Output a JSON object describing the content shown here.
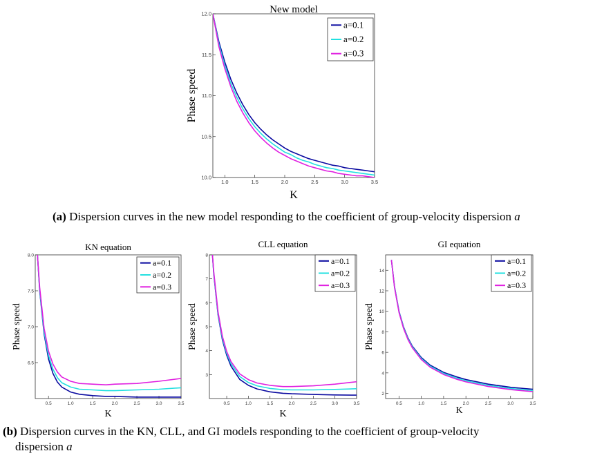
{
  "figure": {
    "caption_a": {
      "tag": "(a)",
      "text": "Dispersion curves in the new model responding to the coefficient of group-velocity dispersion",
      "var": "a"
    },
    "caption_b": {
      "tag": "(b)",
      "text_line1": "Dispersion curves in the KN, CLL, and GI models responding to the coefficient of group-velocity",
      "text_line2": "dispersion",
      "var": "a"
    }
  },
  "chart_data": [
    {
      "type": "line",
      "title": "New model",
      "xlabel": "K",
      "ylabel": "Phase speed",
      "xlim": [
        0.8,
        3.5
      ],
      "ylim": [
        10.0,
        12.0
      ],
      "xticks": [
        "1.0",
        "1.5",
        "2.0",
        "2.5",
        "3.0",
        "3.5"
      ],
      "yticks": [
        "10.0",
        "10.5",
        "11.0",
        "11.5",
        "12.0"
      ],
      "legend": "top-right",
      "x": [
        0.8,
        0.9,
        1.0,
        1.1,
        1.2,
        1.3,
        1.4,
        1.5,
        1.6,
        1.7,
        1.8,
        1.9,
        2.0,
        2.1,
        2.2,
        2.3,
        2.4,
        2.5,
        2.6,
        2.7,
        2.8,
        2.9,
        3.0,
        3.1,
        3.2,
        3.3,
        3.4,
        3.5
      ],
      "series": [
        {
          "name": "a=0.1",
          "color": "#0a0aa0",
          "values": [
            12.0,
            11.66,
            11.41,
            11.2,
            11.03,
            10.89,
            10.77,
            10.67,
            10.59,
            10.52,
            10.46,
            10.41,
            10.36,
            10.32,
            10.29,
            10.26,
            10.23,
            10.21,
            10.19,
            10.17,
            10.15,
            10.14,
            10.12,
            10.11,
            10.1,
            10.09,
            10.08,
            10.07
          ]
        },
        {
          "name": "a=0.2",
          "color": "#22e0e0",
          "values": [
            12.0,
            11.63,
            11.37,
            11.15,
            10.98,
            10.84,
            10.72,
            10.62,
            10.54,
            10.47,
            10.41,
            10.36,
            10.31,
            10.28,
            10.24,
            10.21,
            10.19,
            10.16,
            10.14,
            10.12,
            10.11,
            10.09,
            10.08,
            10.07,
            10.06,
            10.05,
            10.04,
            10.03
          ]
        },
        {
          "name": "a=0.3",
          "color": "#e020e0",
          "values": [
            12.0,
            11.6,
            11.33,
            11.11,
            10.93,
            10.79,
            10.67,
            10.57,
            10.49,
            10.42,
            10.36,
            10.31,
            10.27,
            10.23,
            10.2,
            10.17,
            10.14,
            10.12,
            10.1,
            10.08,
            10.07,
            10.05,
            10.04,
            10.03,
            10.02,
            10.02,
            10.01,
            10.0
          ]
        }
      ]
    },
    {
      "type": "line",
      "title": "KN equation",
      "xlabel": "K",
      "ylabel": "Phase speed",
      "xlim": [
        0.2,
        3.5
      ],
      "ylim": [
        6.0,
        8.0
      ],
      "xticks": [
        "0.5",
        "1.0",
        "1.5",
        "2.0",
        "2.5",
        "3.0",
        "3.5"
      ],
      "yticks": [
        "6.5",
        "7.0",
        "7.5",
        "8.0"
      ],
      "legend": "top-right",
      "x": [
        0.25,
        0.3,
        0.4,
        0.5,
        0.6,
        0.7,
        0.8,
        1.0,
        1.2,
        1.5,
        1.8,
        2.0,
        2.5,
        3.0,
        3.5
      ],
      "series": [
        {
          "name": "a=0.1",
          "color": "#0a0aa0",
          "values": [
            8.0,
            7.5,
            6.9,
            6.55,
            6.35,
            6.23,
            6.16,
            6.09,
            6.06,
            6.04,
            6.03,
            6.03,
            6.02,
            6.02,
            6.02
          ]
        },
        {
          "name": "a=0.2",
          "color": "#22e0e0",
          "values": [
            8.0,
            7.52,
            6.93,
            6.6,
            6.41,
            6.29,
            6.22,
            6.16,
            6.13,
            6.12,
            6.11,
            6.11,
            6.12,
            6.13,
            6.15
          ]
        },
        {
          "name": "a=0.3",
          "color": "#e020e0",
          "values": [
            8.0,
            7.55,
            6.98,
            6.66,
            6.48,
            6.37,
            6.3,
            6.24,
            6.21,
            6.2,
            6.19,
            6.2,
            6.21,
            6.24,
            6.28
          ]
        }
      ]
    },
    {
      "type": "line",
      "title": "CLL equation",
      "xlabel": "K",
      "ylabel": "Phase speed",
      "xlim": [
        0.1,
        3.5
      ],
      "ylim": [
        2.0,
        8.0
      ],
      "xticks": [
        "0.5",
        "1.0",
        "1.5",
        "2.0",
        "2.5",
        "3.0",
        "3.5"
      ],
      "yticks": [
        "3",
        "4",
        "5",
        "6",
        "7",
        "8"
      ],
      "legend": "top-right",
      "x": [
        0.17,
        0.2,
        0.3,
        0.4,
        0.5,
        0.6,
        0.8,
        1.0,
        1.2,
        1.5,
        1.8,
        2.0,
        2.5,
        3.0,
        3.5
      ],
      "series": [
        {
          "name": "a=0.1",
          "color": "#0a0aa0",
          "values": [
            8.0,
            7.2,
            5.5,
            4.45,
            3.8,
            3.35,
            2.8,
            2.55,
            2.4,
            2.28,
            2.22,
            2.2,
            2.17,
            2.15,
            2.14
          ]
        },
        {
          "name": "a=0.2",
          "color": "#22e0e0",
          "values": [
            8.0,
            7.25,
            5.55,
            4.52,
            3.88,
            3.45,
            2.92,
            2.67,
            2.53,
            2.42,
            2.37,
            2.36,
            2.36,
            2.38,
            2.41
          ]
        },
        {
          "name": "a=0.3",
          "color": "#e020e0",
          "values": [
            8.0,
            7.3,
            5.62,
            4.6,
            3.96,
            3.54,
            3.03,
            2.79,
            2.65,
            2.55,
            2.5,
            2.5,
            2.53,
            2.6,
            2.7
          ]
        }
      ]
    },
    {
      "type": "line",
      "title": "GI equation",
      "xlabel": "K",
      "ylabel": "Phase speed",
      "xlim": [
        0.2,
        3.5
      ],
      "ylim": [
        1.5,
        15.5
      ],
      "xticks": [
        "0.5",
        "1.0",
        "1.5",
        "2.0",
        "2.5",
        "3.0",
        "3.5"
      ],
      "yticks": [
        "2",
        "4",
        "6",
        "8",
        "10",
        "12",
        "14"
      ],
      "legend": "top-right",
      "x": [
        0.33,
        0.4,
        0.5,
        0.6,
        0.7,
        0.8,
        1.0,
        1.2,
        1.5,
        1.8,
        2.0,
        2.5,
        3.0,
        3.5
      ],
      "series": [
        {
          "name": "a=0.1",
          "color": "#0a0aa0",
          "values": [
            15.0,
            12.4,
            10.0,
            8.5,
            7.4,
            6.6,
            5.5,
            4.75,
            4.05,
            3.6,
            3.35,
            2.9,
            2.6,
            2.4
          ]
        },
        {
          "name": "a=0.2",
          "color": "#22e0e0",
          "values": [
            15.0,
            12.35,
            9.95,
            8.43,
            7.33,
            6.52,
            5.4,
            4.65,
            3.95,
            3.48,
            3.23,
            2.78,
            2.48,
            2.28
          ]
        },
        {
          "name": "a=0.3",
          "color": "#e020e0",
          "values": [
            15.0,
            12.3,
            9.88,
            8.35,
            7.25,
            6.44,
            5.3,
            4.55,
            3.84,
            3.37,
            3.12,
            2.67,
            2.37,
            2.17
          ]
        }
      ]
    }
  ]
}
